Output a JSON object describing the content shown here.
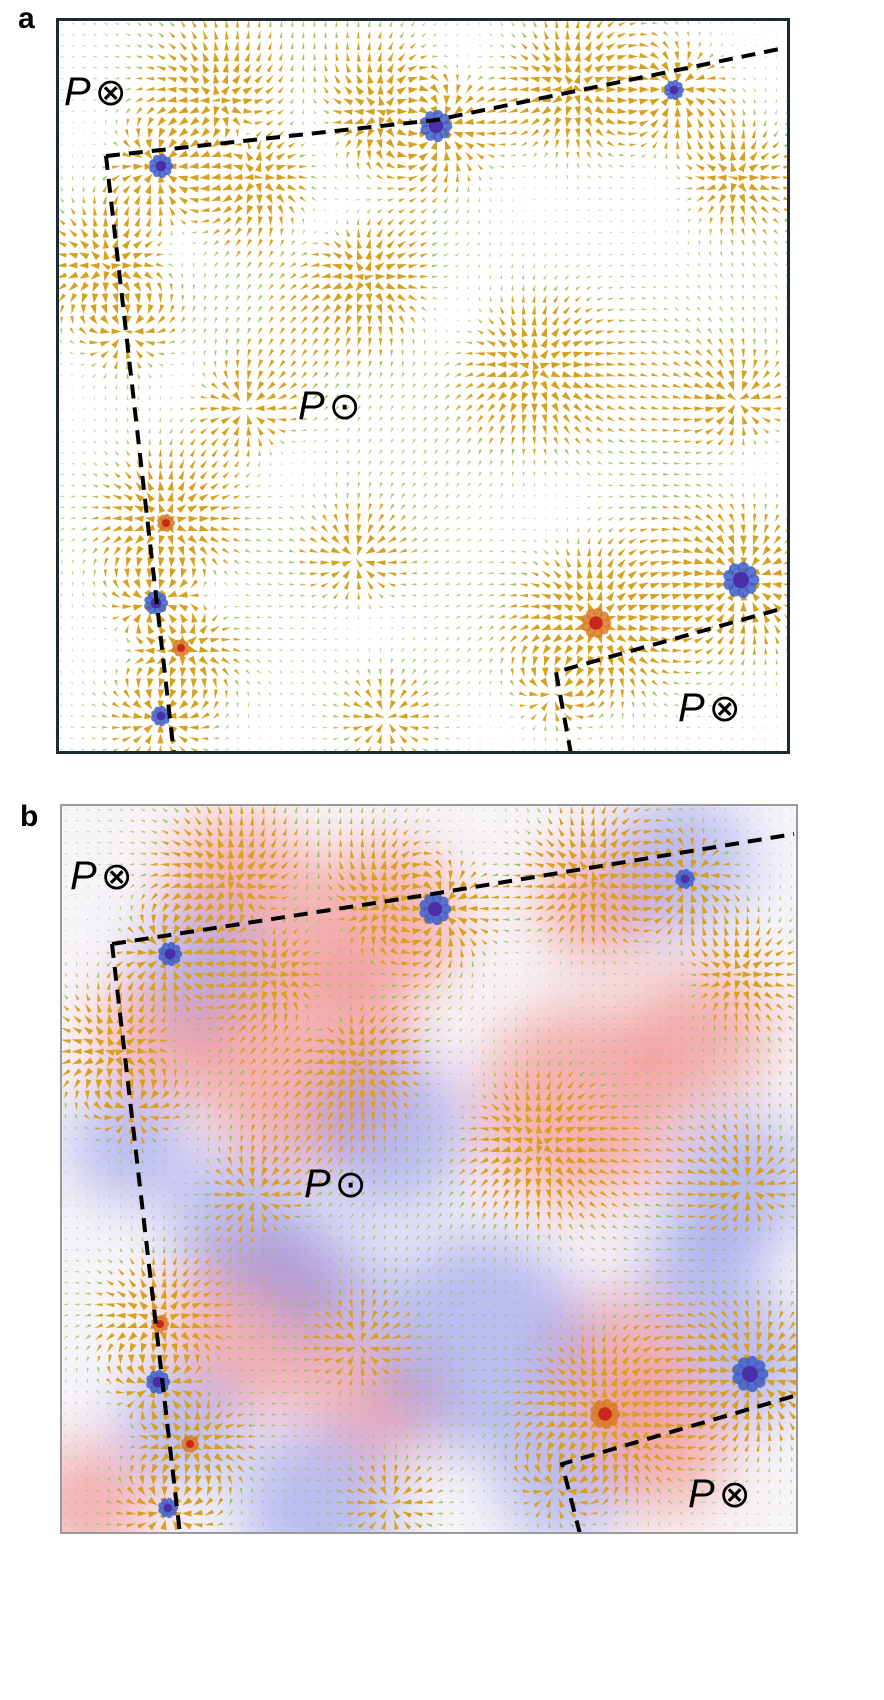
{
  "figure": {
    "panels": [
      {
        "id": "a",
        "letter": "a",
        "background": "white",
        "labels": [
          {
            "text": "P",
            "symbol": "⊗"
          },
          {
            "text": "P",
            "symbol": "⊙"
          },
          {
            "text": "P",
            "symbol": "⊗"
          }
        ]
      },
      {
        "id": "b",
        "letter": "b",
        "background": "red-blue charge map",
        "labels": [
          {
            "text": "P",
            "symbol": "⊗"
          },
          {
            "text": "P",
            "symbol": "⊙"
          },
          {
            "text": "P",
            "symbol": "⊗"
          }
        ]
      }
    ],
    "colors": {
      "frame_a": "#1c2a33",
      "frame_b": "#9a9a9a",
      "boundary": "#000000",
      "positive": "#f07a74",
      "negative": "#7f86e8",
      "arrow_high": "#d8a020",
      "arrow_mid": "#8fc04a",
      "arrow_low": "#4a9fd0"
    }
  }
}
